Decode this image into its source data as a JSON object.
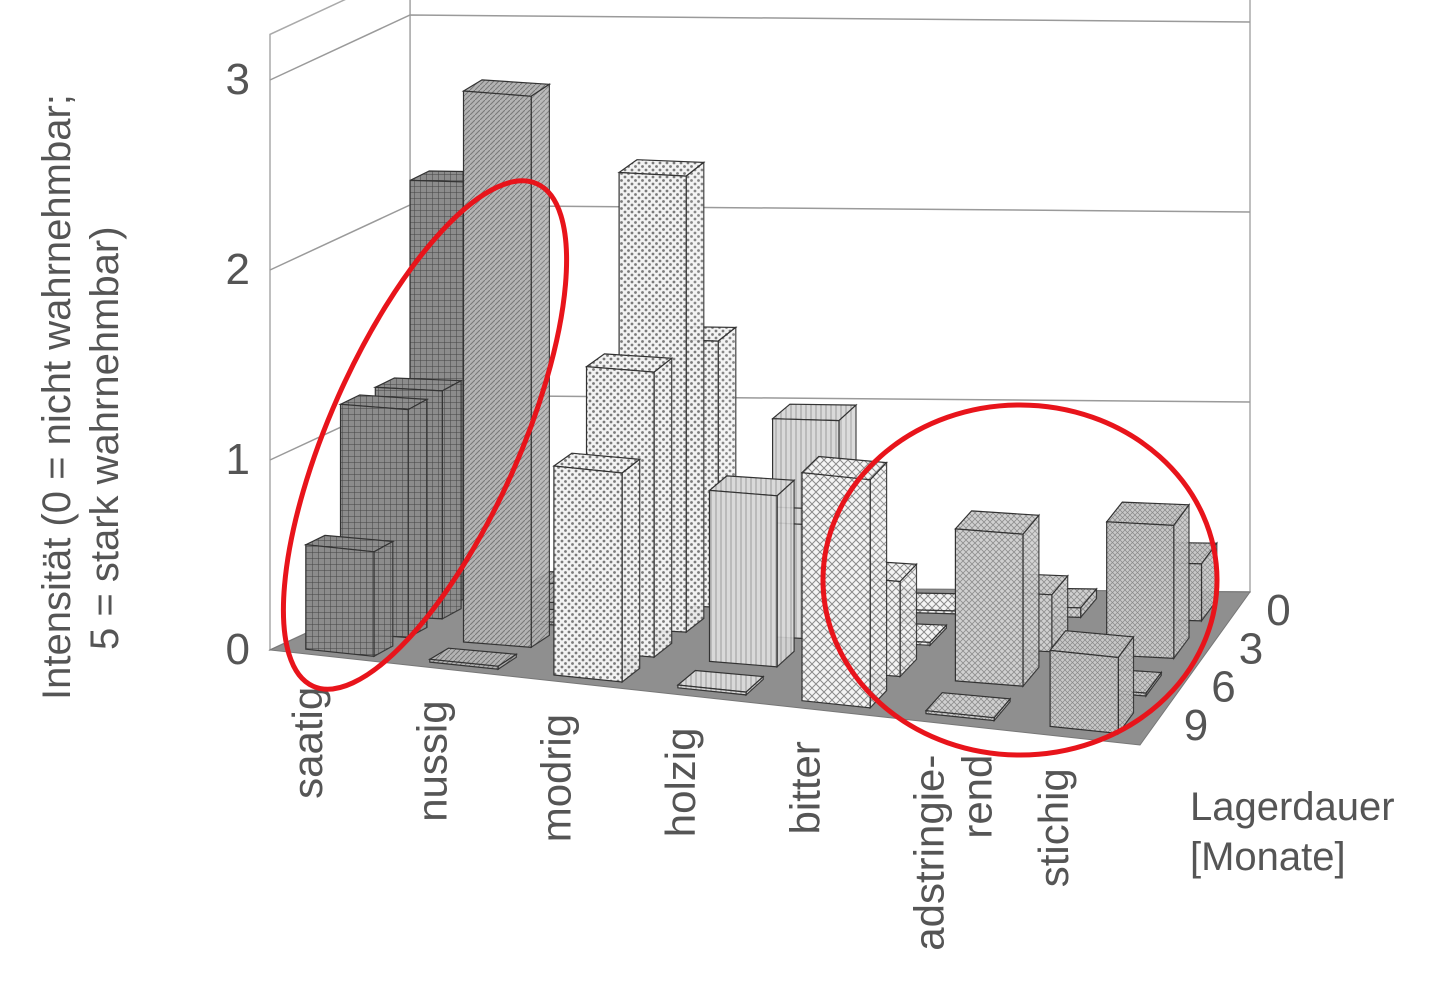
{
  "chart_data": {
    "type": "bar",
    "variant": "3d-grouped",
    "title": "",
    "ylabel_line1": "Intensität (0 = nicht wahrnehmbar;",
    "ylabel_line2": "5 = stark wahrnehmbar)",
    "zlabel_line1": "Lagerdauer",
    "zlabel_line2": "[Monate]",
    "ylim": [
      0,
      3
    ],
    "y_ticks": [
      "0",
      "1",
      "2",
      "3"
    ],
    "categories": [
      "saatig",
      "nussig",
      "modrig",
      "holzig",
      "bitter",
      "adstringie-\nrend",
      "stichig"
    ],
    "series": [
      {
        "name": "0",
        "values": [
          2.2,
          0.1,
          1.4,
          1.0,
          0.0,
          0.05,
          0.3
        ]
      },
      {
        "name": "3",
        "values": [
          1.2,
          0.0,
          2.4,
          0.6,
          0.0,
          0.3,
          0.7
        ]
      },
      {
        "name": "6",
        "values": [
          1.2,
          2.9,
          1.5,
          0.9,
          0.5,
          0.8,
          0.0
        ]
      },
      {
        "name": "9",
        "values": [
          0.55,
          0.0,
          1.1,
          0.0,
          1.2,
          0.0,
          0.4
        ]
      }
    ],
    "series_patterns": [
      "crosshatch",
      "dense-diagonal",
      "dots",
      "light-vertical",
      "diamond",
      "fine-diagonal",
      "fine-cross"
    ],
    "grid": true,
    "annotations": [
      "red-ellipse-around-saatig",
      "red-ellipse-around-adstringierend-and-stichig"
    ],
    "annotation_color": "#e8141b"
  }
}
